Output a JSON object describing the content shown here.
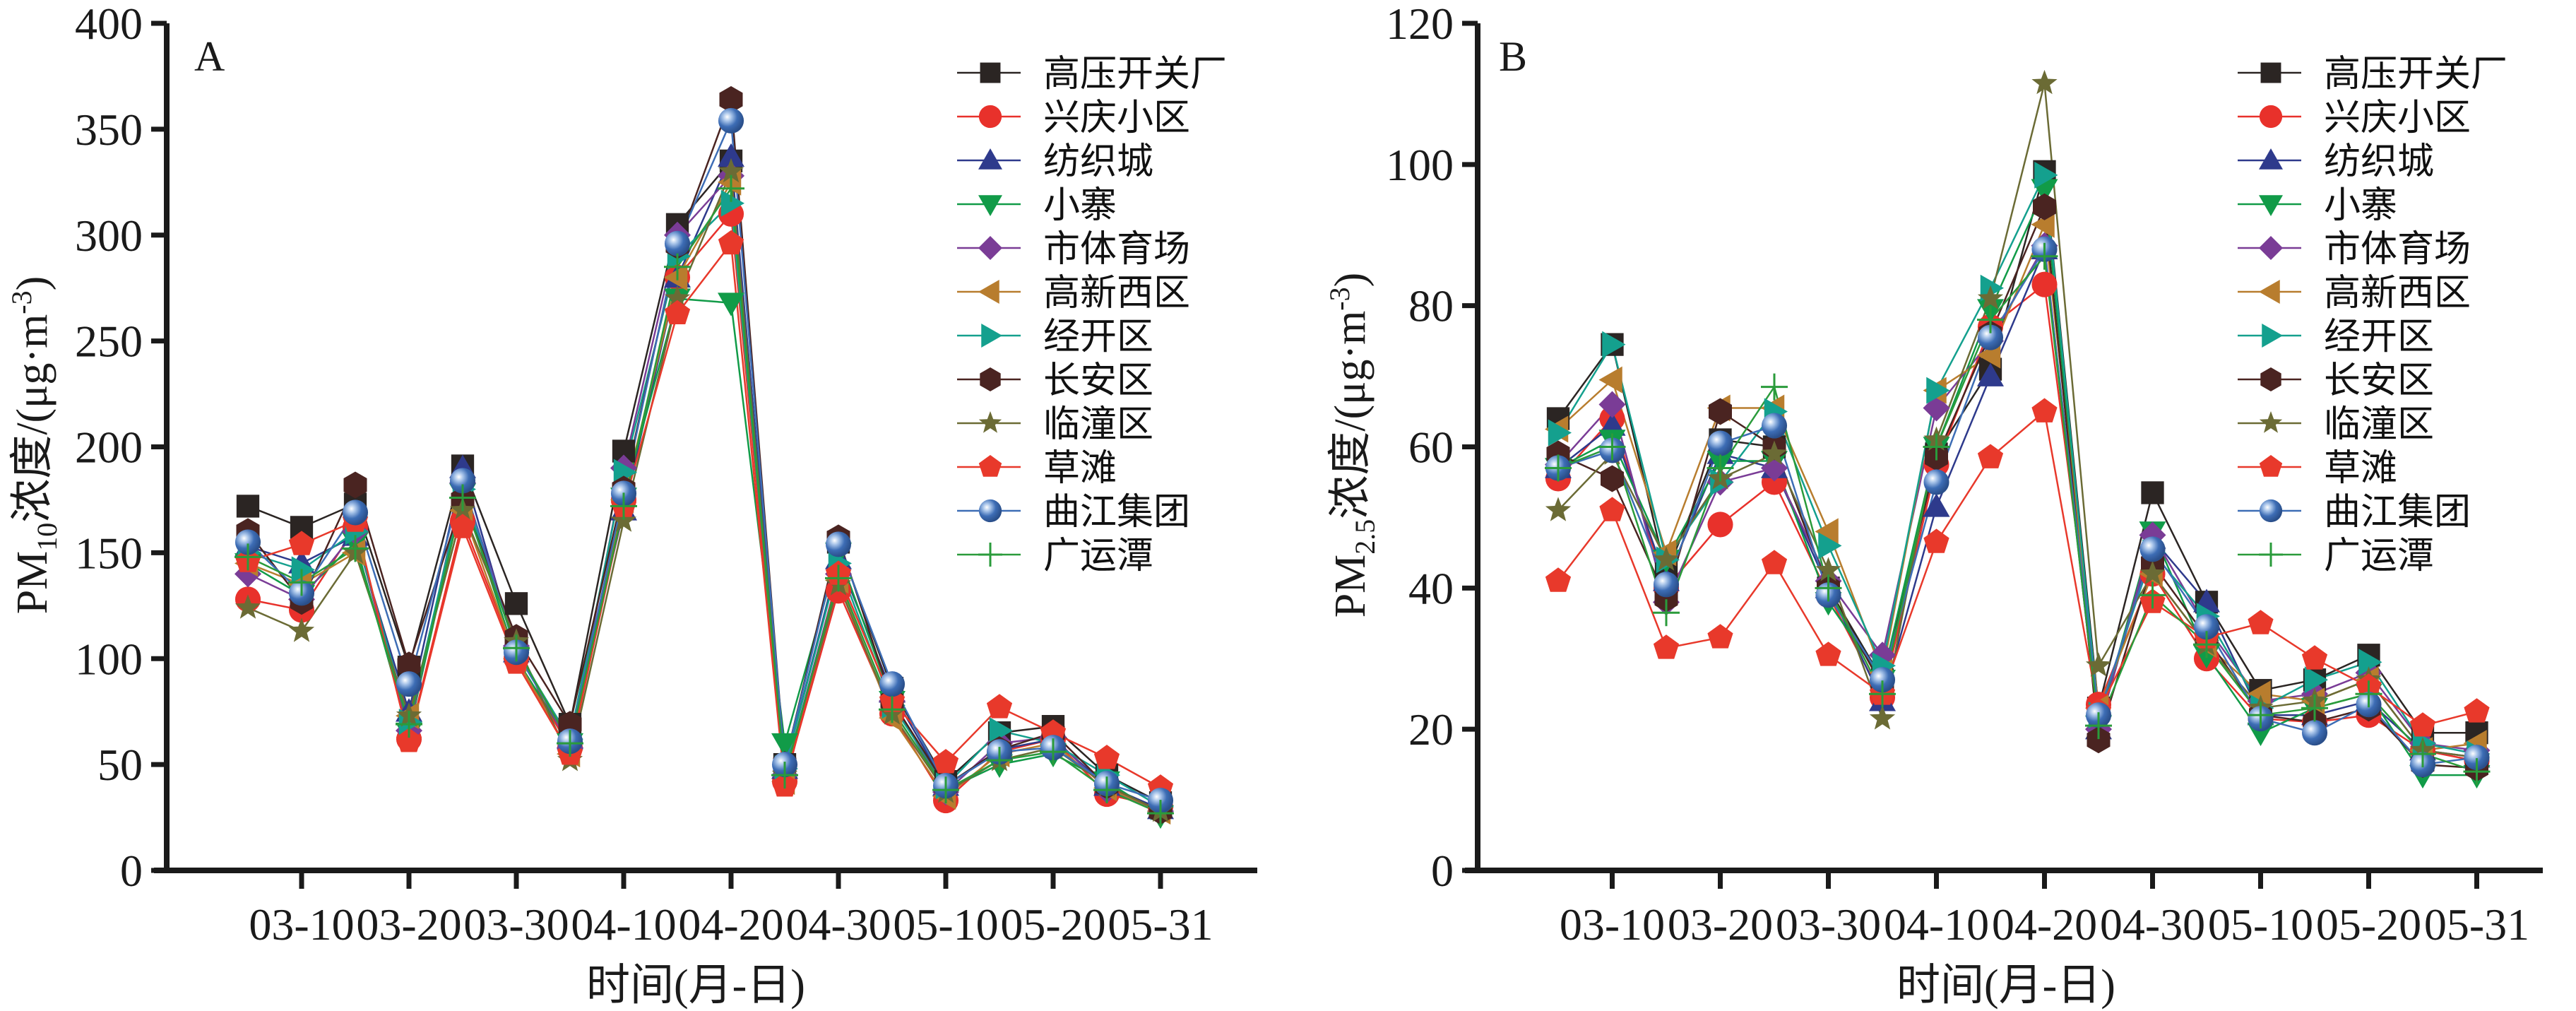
{
  "chart_data": [
    {
      "type": "line",
      "panel": "A",
      "title": "",
      "xlabel": "时间(月-日)",
      "ylabel_main": "PM",
      "ylabel_sub": "10",
      "ylabel_rest": "浓度/(μg·m",
      "ylabel_sup": "-3",
      "ylabel_close": ")",
      "ylim": [
        0,
        400
      ],
      "yticks": [
        0,
        50,
        100,
        150,
        200,
        250,
        300,
        350,
        400
      ],
      "x": [
        "03-05",
        "03-10",
        "03-15",
        "03-20",
        "03-25",
        "03-30",
        "04-05",
        "04-10",
        "04-15",
        "04-20",
        "04-25",
        "04-30",
        "05-05",
        "05-10",
        "05-15",
        "05-20",
        "05-25",
        "05-31"
      ],
      "xtick_labels": [
        "03-10",
        "03-20",
        "03-30",
        "04-10",
        "04-20",
        "04-30",
        "05-10",
        "05-20",
        "05-31"
      ],
      "grid": false,
      "legend_position": "top-right",
      "series": [
        {
          "name": "高压开关厂",
          "marker": "square",
          "color": "#2b2523",
          "values": [
            172,
            162,
            173,
            96,
            191,
            126,
            69,
            198,
            305,
            335,
            50,
            155,
            86,
            42,
            65,
            68,
            45,
            32
          ]
        },
        {
          "name": "兴庆小区",
          "marker": "circle",
          "color": "#e8312b",
          "values": [
            128,
            123,
            162,
            62,
            165,
            100,
            58,
            175,
            280,
            310,
            42,
            132,
            74,
            33,
            56,
            62,
            36,
            30
          ]
        },
        {
          "name": "纺织城",
          "marker": "triangle-up",
          "color": "#2e3a8c",
          "values": [
            153,
            145,
            158,
            75,
            190,
            103,
            62,
            170,
            280,
            337,
            48,
            147,
            84,
            40,
            57,
            62,
            40,
            29
          ]
        },
        {
          "name": "小寨",
          "marker": "triangle-down",
          "color": "#119b48",
          "values": [
            145,
            130,
            155,
            65,
            178,
            100,
            60,
            176,
            270,
            268,
            60,
            150,
            80,
            38,
            50,
            55,
            42,
            26
          ]
        },
        {
          "name": "市体育场",
          "marker": "diamond",
          "color": "#7a3c96",
          "values": [
            140,
            128,
            160,
            66,
            183,
            106,
            58,
            190,
            300,
            328,
            45,
            140,
            80,
            37,
            60,
            63,
            38,
            28
          ]
        },
        {
          "name": "高新西区",
          "marker": "triangle-left",
          "color": "#b87d2e",
          "values": [
            145,
            135,
            150,
            73,
            170,
            100,
            55,
            175,
            280,
            325,
            42,
            137,
            72,
            35,
            55,
            60,
            39,
            28
          ]
        },
        {
          "name": "经开区",
          "marker": "triangle-right",
          "color": "#14a08e",
          "values": [
            150,
            142,
            160,
            70,
            180,
            104,
            62,
            188,
            290,
            315,
            48,
            145,
            78,
            40,
            66,
            60,
            45,
            30
          ]
        },
        {
          "name": "长安区",
          "marker": "hexagon",
          "color": "#4a2421",
          "values": [
            160,
            127,
            182,
            97,
            175,
            110,
            69,
            180,
            295,
            364,
            50,
            157,
            80,
            40,
            57,
            65,
            40,
            28
          ]
        },
        {
          "name": "临潼区",
          "marker": "star",
          "color": "#6b6b35",
          "values": [
            124,
            113,
            150,
            73,
            170,
            108,
            52,
            165,
            270,
            330,
            45,
            135,
            74,
            37,
            52,
            58,
            40,
            28
          ]
        },
        {
          "name": "草滩",
          "marker": "pentagon",
          "color": "#e8392b",
          "values": [
            146,
            154,
            165,
            61,
            162,
            98,
            55,
            172,
            263,
            296,
            40,
            140,
            80,
            51,
            77,
            65,
            53,
            39
          ]
        },
        {
          "name": "曲江集团",
          "marker": "sphere",
          "color": "#3d6db5",
          "values": [
            155,
            131,
            169,
            88,
            184,
            103,
            61,
            178,
            296,
            354,
            50,
            154,
            88,
            40,
            56,
            58,
            41,
            33
          ]
        },
        {
          "name": "广运潭",
          "marker": "plus",
          "color": "#2a9b3b",
          "values": [
            148,
            136,
            152,
            69,
            176,
            105,
            60,
            172,
            285,
            322,
            45,
            138,
            76,
            38,
            52,
            56,
            38,
            27
          ]
        }
      ]
    },
    {
      "type": "line",
      "panel": "B",
      "title": "",
      "xlabel": "时间(月-日)",
      "ylabel_main": "PM",
      "ylabel_sub": "2.5",
      "ylabel_rest": "浓度/(μg·m",
      "ylabel_sup": "-3",
      "ylabel_close": ")",
      "ylim": [
        0,
        120
      ],
      "yticks": [
        0,
        20,
        40,
        60,
        80,
        100,
        120
      ],
      "x": [
        "03-05",
        "03-10",
        "03-15",
        "03-20",
        "03-25",
        "03-30",
        "04-05",
        "04-10",
        "04-15",
        "04-20",
        "04-25",
        "04-30",
        "05-05",
        "05-10",
        "05-15",
        "05-20",
        "05-25",
        "05-31"
      ],
      "xtick_labels": [
        "03-10",
        "03-20",
        "03-30",
        "04-10",
        "04-20",
        "04-30",
        "05-10",
        "05-20",
        "05-31"
      ],
      "grid": false,
      "legend_position": "top-right",
      "series": [
        {
          "name": "高压开关厂",
          "marker": "square",
          "color": "#2b2523",
          "values": [
            64,
            74.5,
            42,
            61,
            60,
            40,
            27,
            59,
            71,
            99,
            23,
            53.5,
            38,
            25.5,
            27,
            30.5,
            19.5,
            19.5
          ]
        },
        {
          "name": "兴庆小区",
          "marker": "circle",
          "color": "#e8312b",
          "values": [
            55.5,
            64,
            40,
            49,
            55,
            39,
            24.5,
            57.5,
            77,
            83,
            23.5,
            42,
            30,
            21.5,
            21,
            22,
            17,
            15.5
          ]
        },
        {
          "name": "纺织城",
          "marker": "triangle-up",
          "color": "#2e3a8c",
          "values": [
            57,
            63,
            41,
            59,
            57,
            40,
            24,
            51.5,
            70,
            88,
            20,
            47,
            38,
            22,
            22,
            24,
            17,
            16
          ]
        },
        {
          "name": "小寨",
          "marker": "triangle-down",
          "color": "#119b48",
          "values": [
            57,
            61,
            44,
            58,
            58,
            38,
            27,
            60,
            79.5,
            96.5,
            20.5,
            48,
            30.5,
            19.5,
            23,
            25,
            13.5,
            13.5
          ]
        },
        {
          "name": "市体育场",
          "marker": "diamond",
          "color": "#7a3c96",
          "values": [
            57.5,
            66,
            38,
            55,
            57,
            41,
            30.5,
            65.5,
            75,
            88.5,
            20,
            47.5,
            34.5,
            24,
            25,
            28,
            18,
            17
          ]
        },
        {
          "name": "高新西区",
          "marker": "triangle-left",
          "color": "#b87d2e",
          "values": [
            62.5,
            69.5,
            45,
            65.5,
            65.5,
            48,
            28,
            68,
            73,
            91.5,
            23,
            42,
            32,
            25,
            24,
            27,
            17,
            18
          ]
        },
        {
          "name": "经开区",
          "marker": "triangle-right",
          "color": "#14a08e",
          "values": [
            62,
            74.5,
            44,
            55,
            65,
            46,
            29,
            68,
            82.5,
            98.5,
            22,
            45,
            36,
            23,
            27,
            29.5,
            18,
            16.5
          ]
        },
        {
          "name": "长安区",
          "marker": "hexagon",
          "color": "#4a2421",
          "values": [
            59,
            55.5,
            38.5,
            65,
            60,
            40,
            26,
            58.5,
            76,
            94,
            18.5,
            43.5,
            33,
            22,
            21,
            23,
            15,
            14.5
          ]
        },
        {
          "name": "临潼区",
          "marker": "star",
          "color": "#6b6b35",
          "values": [
            51,
            59,
            44,
            55.5,
            59,
            42.5,
            21.5,
            61,
            81,
            111.5,
            29,
            42,
            32,
            23,
            24,
            27,
            17,
            16
          ]
        },
        {
          "name": "草滩",
          "marker": "pentagon",
          "color": "#e8392b",
          "values": [
            41,
            51,
            31.5,
            33,
            43.5,
            30.5,
            25,
            46.5,
            58.5,
            65,
            22.5,
            38,
            33,
            35,
            30,
            26,
            20.5,
            22.5
          ]
        },
        {
          "name": "曲江集团",
          "marker": "sphere",
          "color": "#3d6db5",
          "values": [
            57,
            59.5,
            40.5,
            60.5,
            63,
            39,
            27,
            55,
            75.5,
            88,
            22,
            45.5,
            34.5,
            21.5,
            19.5,
            23.5,
            15,
            16
          ]
        },
        {
          "name": "广运潭",
          "marker": "plus",
          "color": "#2a9b3b",
          "values": [
            57,
            60,
            36.5,
            57,
            68.5,
            40,
            25,
            60,
            78,
            87,
            20.5,
            39,
            32,
            22,
            23,
            25,
            16.5,
            14
          ]
        }
      ]
    }
  ]
}
